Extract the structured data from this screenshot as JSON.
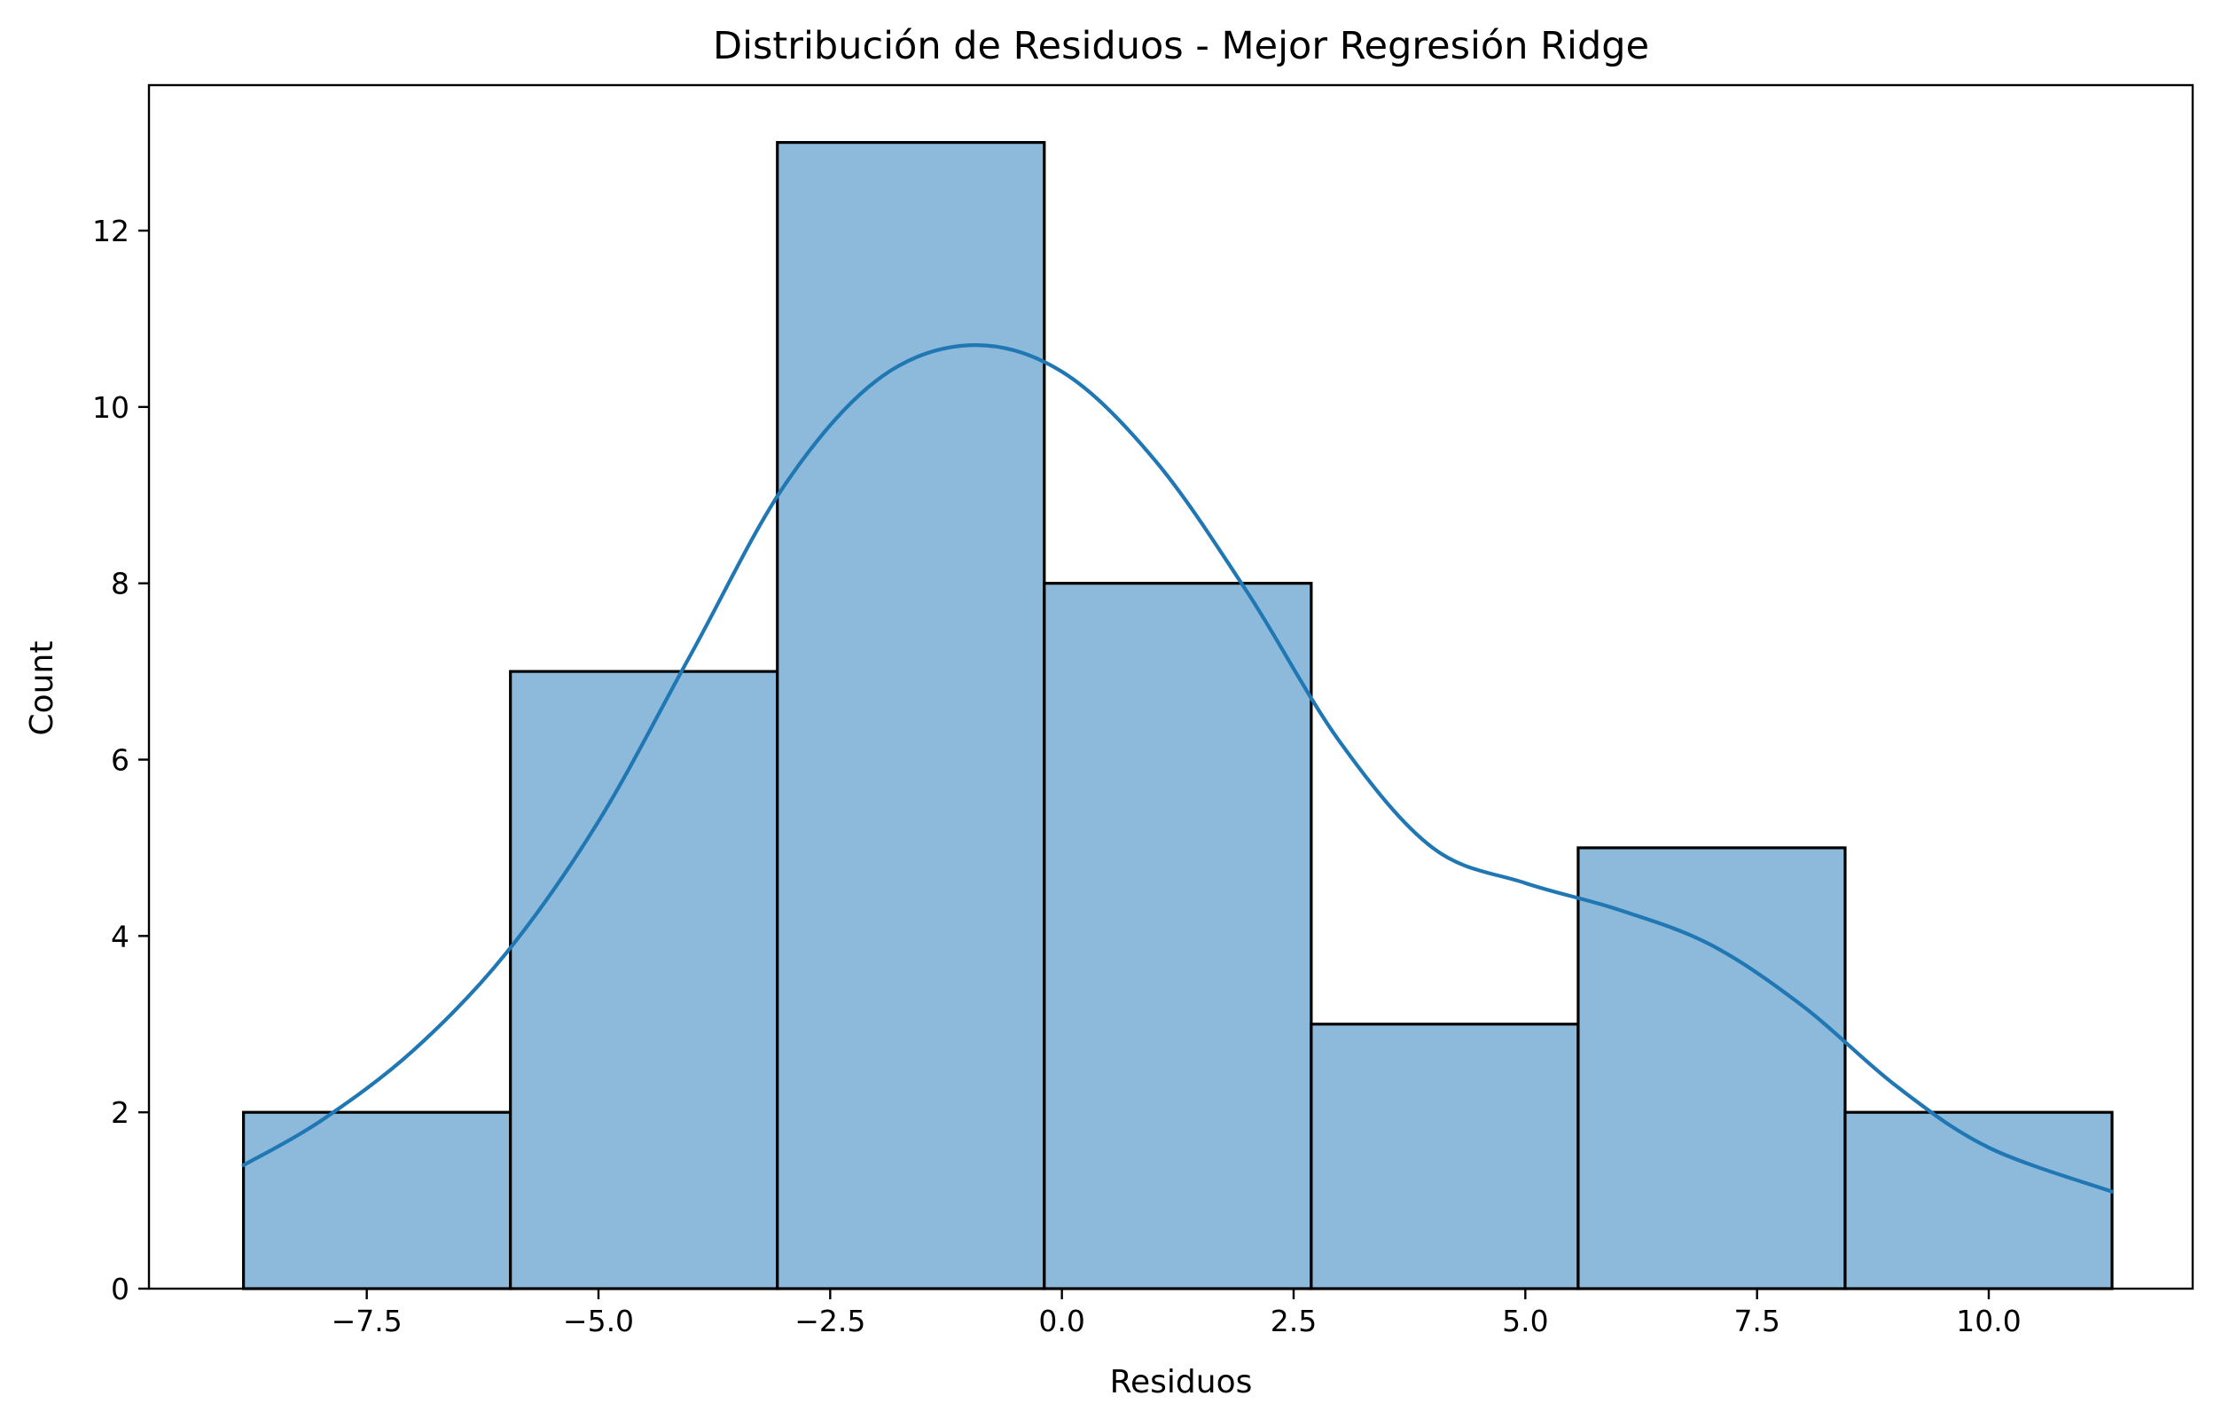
{
  "chart_data": {
    "type": "bar",
    "subtype": "histogram-with-kde",
    "title": "Distribución de Residuos - Mejor Regresión Ridge",
    "xlabel": "Residuos",
    "ylabel": "Count",
    "bin_edges": [
      -8.83,
      -5.95,
      -3.07,
      -0.19,
      2.69,
      5.57,
      8.45,
      11.33
    ],
    "values": [
      2,
      7,
      13,
      8,
      3,
      5,
      2
    ],
    "xlim": [
      -9.85,
      12.2
    ],
    "ylim": [
      0,
      13.65
    ],
    "xticks": [
      -7.5,
      -5.0,
      -2.5,
      0.0,
      2.5,
      5.0,
      7.5,
      10.0
    ],
    "xtick_labels": [
      "−7.5",
      "−5.0",
      "−2.5",
      "0.0",
      "2.5",
      "5.0",
      "7.5",
      "10.0"
    ],
    "yticks": [
      0,
      2,
      4,
      6,
      8,
      10,
      12
    ],
    "ytick_labels": [
      "0",
      "2",
      "4",
      "6",
      "8",
      "10",
      "12"
    ],
    "grid": false,
    "kde_curve": {
      "x": [
        -8.83,
        -8.0,
        -7.0,
        -6.0,
        -5.0,
        -4.0,
        -3.0,
        -2.0,
        -1.0,
        0.0,
        1.0,
        2.0,
        3.0,
        4.0,
        5.0,
        6.0,
        7.0,
        8.0,
        9.0,
        10.0,
        11.33
      ],
      "y": [
        1.4,
        1.9,
        2.7,
        3.8,
        5.3,
        7.2,
        9.1,
        10.3,
        10.7,
        10.4,
        9.4,
        7.9,
        6.2,
        5.0,
        4.6,
        4.3,
        3.9,
        3.2,
        2.3,
        1.6,
        1.1
      ]
    },
    "colors": {
      "bar_fill": "#8db9da",
      "bar_edge": "#000000",
      "kde_line": "#1f77b4"
    }
  }
}
